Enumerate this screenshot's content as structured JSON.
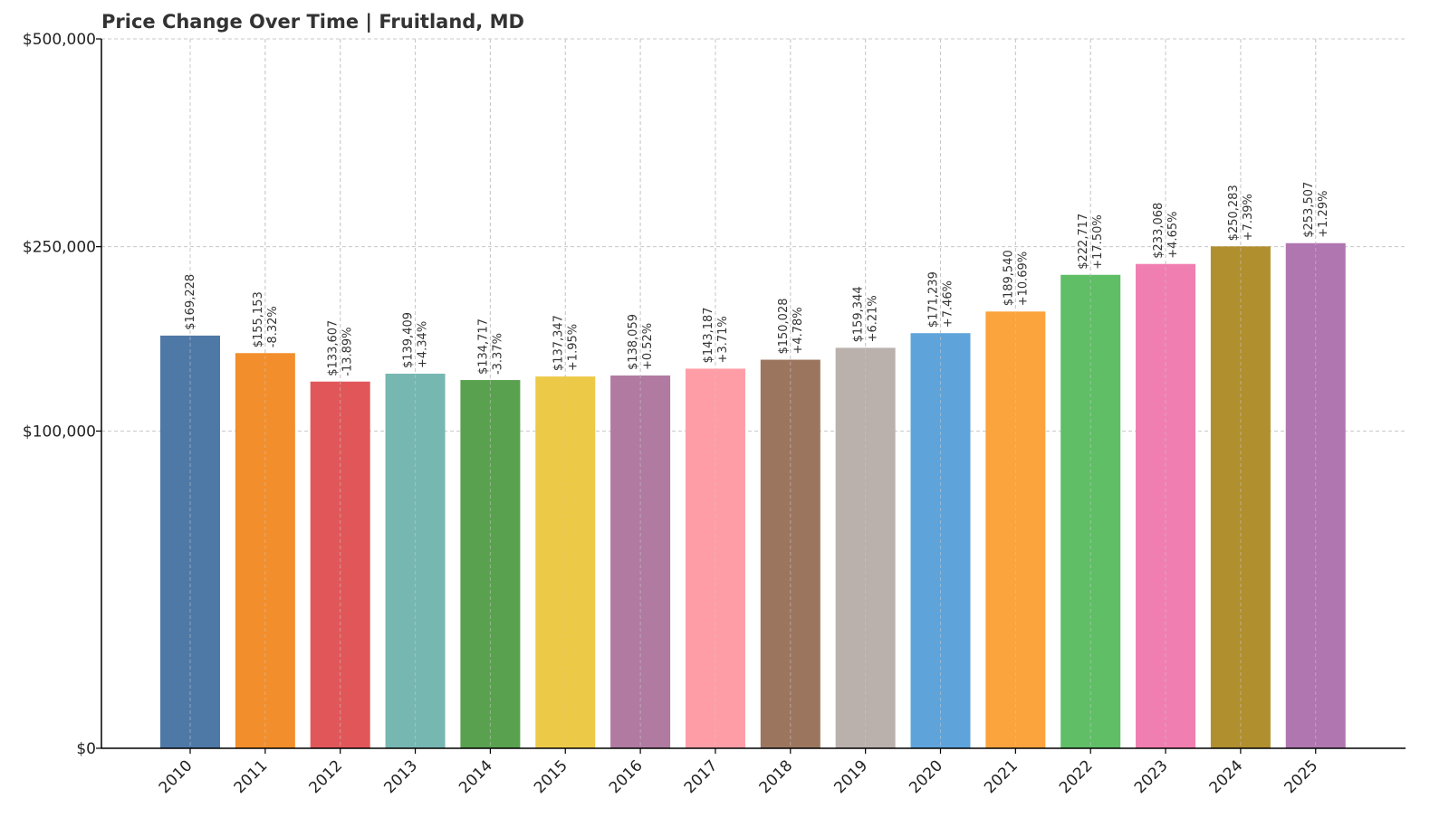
{
  "chart_data": {
    "type": "bar",
    "title": "Price Change Over Time | Fruitland, MD",
    "xlabel": "",
    "ylabel": "",
    "ylim": [
      0,
      500000
    ],
    "yscale": "sqrt",
    "yticks": [
      0,
      100000,
      250000,
      500000
    ],
    "ytick_labels": [
      "$0",
      "$100,000",
      "$250,000",
      "$500,000"
    ],
    "grid": true,
    "legend": "none",
    "categories": [
      "2010",
      "2011",
      "2012",
      "2013",
      "2014",
      "2015",
      "2016",
      "2017",
      "2018",
      "2019",
      "2020",
      "2021",
      "2022",
      "2023",
      "2024",
      "2025"
    ],
    "values": [
      169228,
      155153,
      133607,
      139409,
      134717,
      137347,
      138059,
      143187,
      150028,
      159344,
      171239,
      189540,
      222717,
      233068,
      250283,
      253507
    ],
    "value_labels": [
      "$169,228",
      "$155,153",
      "$133,607",
      "$139,409",
      "$134,717",
      "$137,347",
      "$138,059",
      "$143,187",
      "$150,028",
      "$159,344",
      "$171,239",
      "$189,540",
      "$222,717",
      "$233,068",
      "$250,283",
      "$253,507"
    ],
    "change_labels": [
      "",
      "-8.32%",
      "-13.89%",
      "+4.34%",
      "-3.37%",
      "+1.95%",
      "+0.52%",
      "+3.71%",
      "+4.78%",
      "+6.21%",
      "+7.46%",
      "+10.69%",
      "+17.50%",
      "+4.65%",
      "+7.39%",
      "+1.29%"
    ],
    "colors": [
      "#4e79a7",
      "#f28e2b",
      "#e15759",
      "#76b7b2",
      "#59a14f",
      "#edc948",
      "#b07aa1",
      "#ff9da7",
      "#9c755f",
      "#bab0ac",
      "#5ea4da",
      "#fba33c",
      "#5fbe66",
      "#f07eb0",
      "#b08f2f",
      "#b076b0"
    ]
  }
}
